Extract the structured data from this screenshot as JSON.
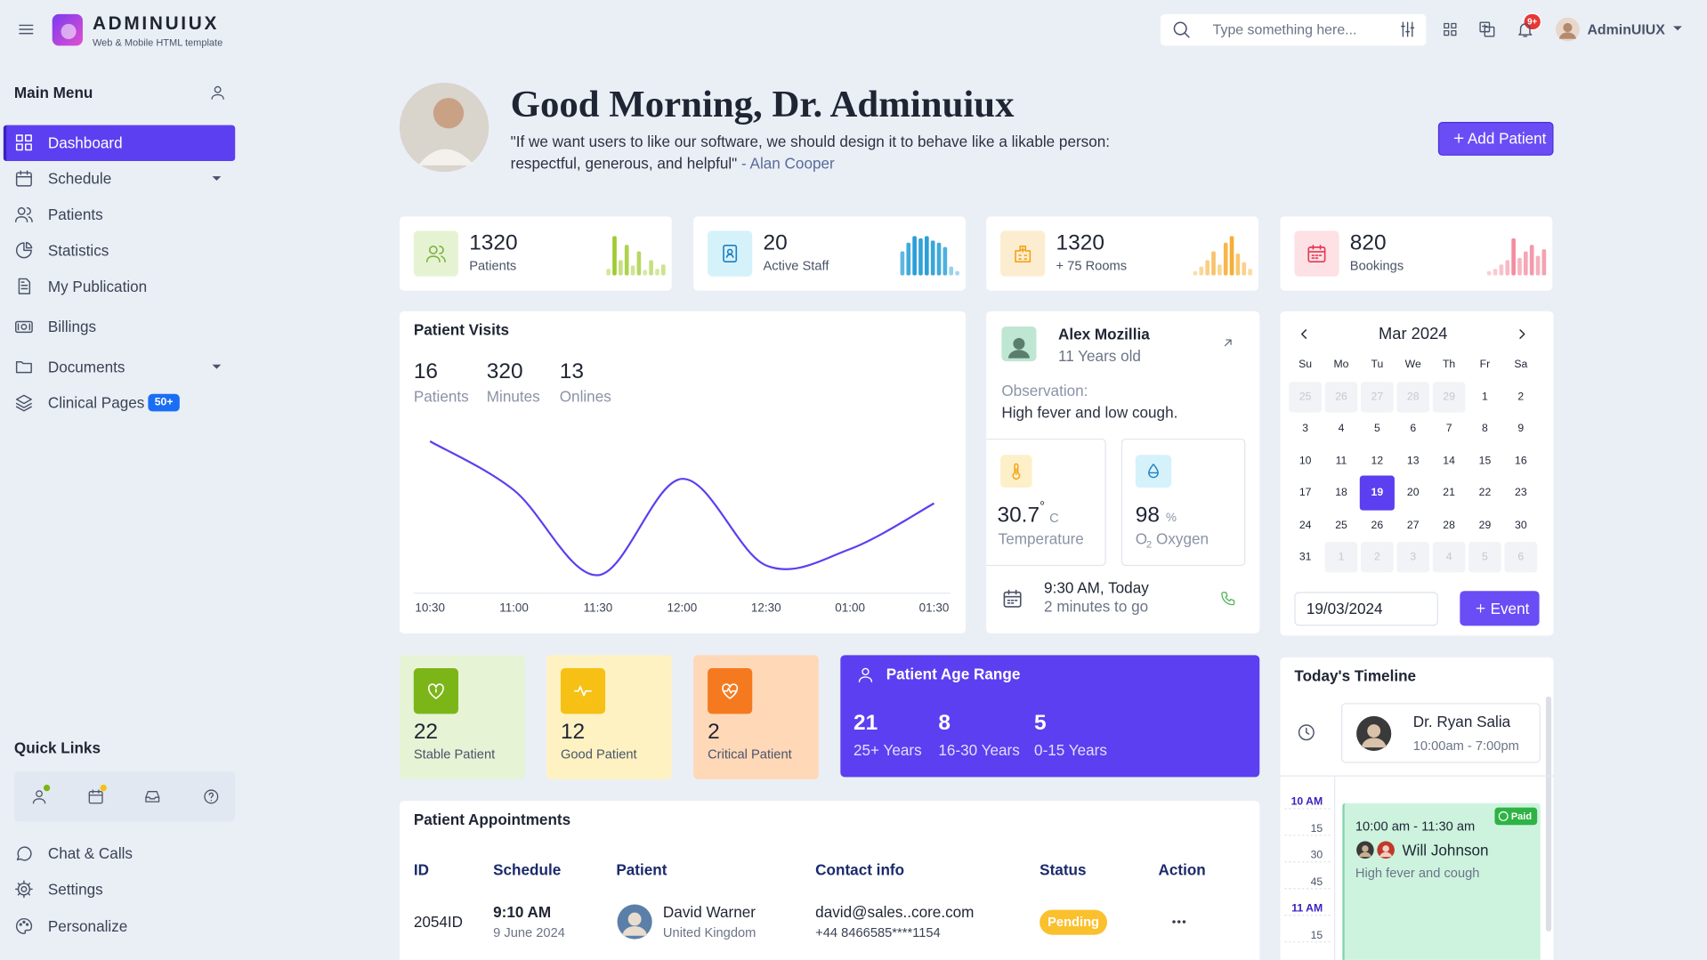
{
  "header": {
    "brand": "ADMINUIUX",
    "tagline": "Web & Mobile HTML template",
    "search_placeholder": "Type something here...",
    "notification_badge": "9+",
    "user": "AdminUIUX"
  },
  "sidebar": {
    "main_menu": "Main Menu",
    "items": [
      {
        "label": "Dashboard",
        "icon": "grid",
        "active": true
      },
      {
        "label": "Schedule",
        "icon": "calendar",
        "submenu": true
      },
      {
        "label": "Patients",
        "icon": "users"
      },
      {
        "label": "Statistics",
        "icon": "pie"
      },
      {
        "label": "My Publication",
        "icon": "doc"
      },
      {
        "label": "Billings",
        "icon": "billing"
      },
      {
        "label": "Documents",
        "icon": "folder",
        "submenu": true
      },
      {
        "label": "Clinical Pages",
        "icon": "layers",
        "badge": "50+"
      }
    ],
    "quick_links": "Quick Links",
    "bottom_items": [
      {
        "label": "Chat & Calls",
        "icon": "chat"
      },
      {
        "label": "Settings",
        "icon": "gear"
      },
      {
        "label": "Personalize",
        "icon": "palette"
      }
    ]
  },
  "greeting": {
    "title": "Good Morning, Dr. Adminuiux",
    "quote": "\"If we want users to like our software, we should design it to behave like a likable person: respectful, generous, and helpful\"",
    "author": "- Alan Cooper",
    "button": "Add Patient"
  },
  "stats": [
    {
      "value": 1320,
      "label": "Patients",
      "tint": "#e6f3d3",
      "color": "#7cb342",
      "bar": "#9fcb2e",
      "spark": [
        6,
        36,
        14,
        28,
        9,
        22,
        5,
        14,
        6,
        10
      ]
    },
    {
      "value": 20,
      "label": "Active Staff",
      "tint": "#d5f2fb",
      "color": "#1f7fc0",
      "bar": "#2a9fd8",
      "spark": [
        22,
        30,
        36,
        34,
        36,
        32,
        30,
        26,
        8,
        4
      ]
    },
    {
      "value": 1320,
      "label": "+ 75 Rooms",
      "tint": "#fdedd0",
      "color": "#f2a31b",
      "bar": "#f6ae35",
      "spark": [
        4,
        8,
        14,
        22,
        10,
        30,
        36,
        20,
        12,
        6
      ]
    },
    {
      "value": 820,
      "label": "Bookings",
      "tint": "#fde1e5",
      "color": "#e53958",
      "bar": "#f38ca0",
      "spark": [
        4,
        6,
        10,
        14,
        34,
        16,
        22,
        28,
        18,
        24
      ]
    }
  ],
  "visit_totals": [
    {
      "value": 16,
      "label": "Patients"
    },
    {
      "value": 320,
      "label": "Minutes"
    },
    {
      "value": 13,
      "label": "Onlines"
    }
  ],
  "chart_data": {
    "type": "line",
    "title": "Patient Visits",
    "categories": [
      "10:30",
      "11:00",
      "11:30",
      "12:00",
      "12:30",
      "01:00",
      "01:30"
    ],
    "values": [
      93,
      63,
      11,
      70,
      17,
      27,
      55
    ],
    "color": "#5b3ff0",
    "ylim": [
      0,
      100
    ]
  },
  "patient": {
    "name": "Alex Mozillia",
    "age": "11 Years old",
    "observation_label": "Observation:",
    "observation": "High fever and low cough.",
    "temperature": "30.7",
    "degree": "°",
    "temperature_unit": "C",
    "temperature_label": "Temperature",
    "oxygen": "98",
    "oxygen_unit": "%",
    "oxygen_symbol": "O",
    "oxygen_sub": "2",
    "oxygen_label": "Oxygen",
    "appointment": "9:30 AM, Today",
    "countdown": "2 minutes to go"
  },
  "calendar": {
    "month": "Mar 2024",
    "weekdays": [
      "Su",
      "Mo",
      "Tu",
      "We",
      "Th",
      "Fr",
      "Sa"
    ],
    "prev_days": [
      25,
      26,
      27,
      28,
      29
    ],
    "days": [
      1,
      2,
      3,
      4,
      5,
      6,
      7,
      8,
      9,
      10,
      11,
      12,
      13,
      14,
      15,
      16,
      17,
      18,
      19,
      20,
      21,
      22,
      23,
      24,
      25,
      26,
      27,
      28,
      29,
      30,
      31
    ],
    "next_days": [
      1,
      2,
      3,
      4,
      5,
      6
    ],
    "selected": 19,
    "date_input": "19/03/2024",
    "button": "Event"
  },
  "status_cards": [
    {
      "value": 22,
      "label": "Stable Patient",
      "tint": "#e7f3d5",
      "color": "#7cb518",
      "icon": "heart"
    },
    {
      "value": 12,
      "label": "Good Patient",
      "tint": "#fff2c2",
      "color": "#f6c015",
      "icon": "pulse"
    },
    {
      "value": 2,
      "label": "Critical Patient",
      "tint": "#ffd8b8",
      "color": "#f57a1f",
      "icon": "heartpulse"
    }
  ],
  "age_range": {
    "title": "Patient Age Range",
    "groups": [
      {
        "value": 21,
        "label": "25+ Years"
      },
      {
        "value": 8,
        "label": "16-30 Years"
      },
      {
        "value": 5,
        "label": "0-15 Years"
      }
    ]
  },
  "timeline": {
    "title": "Today's Timeline",
    "doctor": "Dr. Ryan Salia",
    "hours": "10:00am - 7:00pm",
    "times": [
      "10 AM",
      "15",
      "30",
      "45",
      "11 AM",
      "15"
    ],
    "event_time": "10:00 am - 11:30 am",
    "event_patient": "Will Johnson",
    "event_note": "High fever and cough",
    "event_badge": "Paid"
  },
  "appointments": {
    "title": "Patient Appointments",
    "columns": [
      "ID",
      "Schedule",
      "Patient",
      "Contact info",
      "Status",
      "Action"
    ],
    "rows": [
      {
        "id": "2054ID",
        "time": "9:10 AM",
        "date": "9 June 2024",
        "patient": "David Warner",
        "country": "United Kingdom",
        "email": "david@sales..core.com",
        "phone": "+44 8466585****1154",
        "status": "Pending",
        "status_color": "#fbc02d"
      }
    ]
  }
}
